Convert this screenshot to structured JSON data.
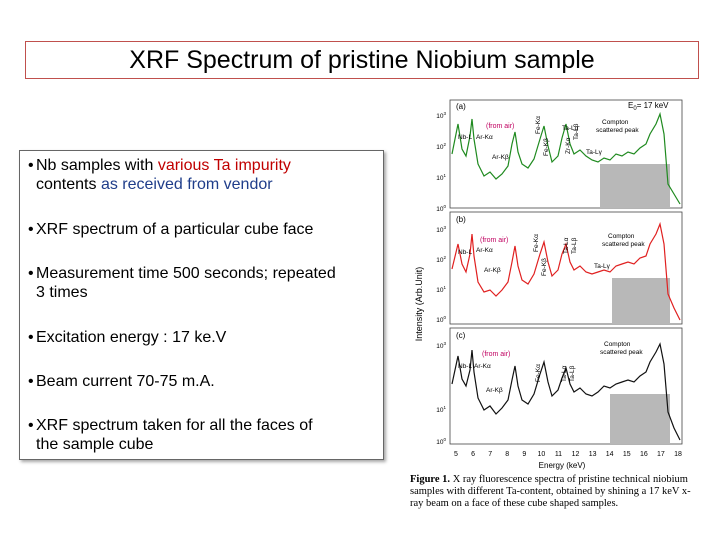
{
  "slide": {
    "title": "XRF Spectrum of pristine Niobium sample"
  },
  "bullets": {
    "b1_part1": "Nb samples with ",
    "b1_red": "various Ta impurity",
    "b1_part2": "contents ",
    "b1_blue": "as received from vendor",
    "b2": "XRF spectrum of a particular cube face",
    "b3_line1": "Measurement time 500 seconds; repeated",
    "b3_line2": "3 times",
    "b4": "Excitation energy : 17 ke.V",
    "b5": "Beam current 70-75 m.A.",
    "b6_line1": "XRF spectrum taken for all the faces of",
    "b6_line2": "the sample cube",
    "bullet_char": "•"
  },
  "figure": {
    "ylabel": "Intensity (Arb.Unit)",
    "xlabel": "Energy (keV)",
    "x_ticks": [
      "5",
      "6",
      "7",
      "8",
      "9",
      "10",
      "11",
      "12",
      "13",
      "14",
      "15",
      "16",
      "17",
      "18"
    ],
    "panel_a": {
      "label": "(a)",
      "e0": "E",
      "e0_sub": "0",
      "e0_val": "= 17 keV",
      "from_air": "(from air)",
      "peaks": [
        "Nb-L",
        "Ar-Kα",
        "Ar-Kβ",
        "Fe-Kα",
        "Fe-Kβ",
        "Zr-Kα",
        "Ta-Lα",
        "Ta-Lβ",
        "Ta-Lγ"
      ],
      "compton": "Compton",
      "compton2": "scattered peak",
      "yticks": [
        "10",
        "10",
        "10",
        "10"
      ],
      "yexp": [
        "3",
        "2",
        "1",
        "0"
      ],
      "color": "#1f8a1f"
    },
    "panel_b": {
      "label": "(b)",
      "from_air": "(from air)",
      "peaks": [
        "Nb-L",
        "Ar-Kα",
        "Ar-Kβ",
        "Fe-Kα",
        "Fe-Kβ",
        "Ta-Lα",
        "Ta-Lβ",
        "Ta-Lγ"
      ],
      "compton": "Compton",
      "compton2": "scattered peak",
      "yticks": [
        "10",
        "10",
        "10",
        "10"
      ],
      "yexp": [
        "3",
        "2",
        "1",
        "0"
      ],
      "color": "#e02020"
    },
    "panel_c": {
      "label": "(c)",
      "from_air": "(from air)",
      "peaks": [
        "Nb-L",
        "Ar-Kα",
        "Ar-Kβ",
        "Fe-Kα",
        "Ta-Lα",
        "Ta-Lβ"
      ],
      "compton": "Compton",
      "compton2": "scattered peak",
      "yticks": [
        "10",
        "10",
        "10"
      ],
      "yexp": [
        "3",
        "1",
        "0"
      ],
      "color": "#111111"
    }
  },
  "caption": {
    "fig_label": "Figure 1.",
    "text": " X ray fluorescence spectra of pristine technical niobium samples with different Ta-content, obtained by shining a 17 keV x-ray beam on a face of these cube shaped samples."
  }
}
